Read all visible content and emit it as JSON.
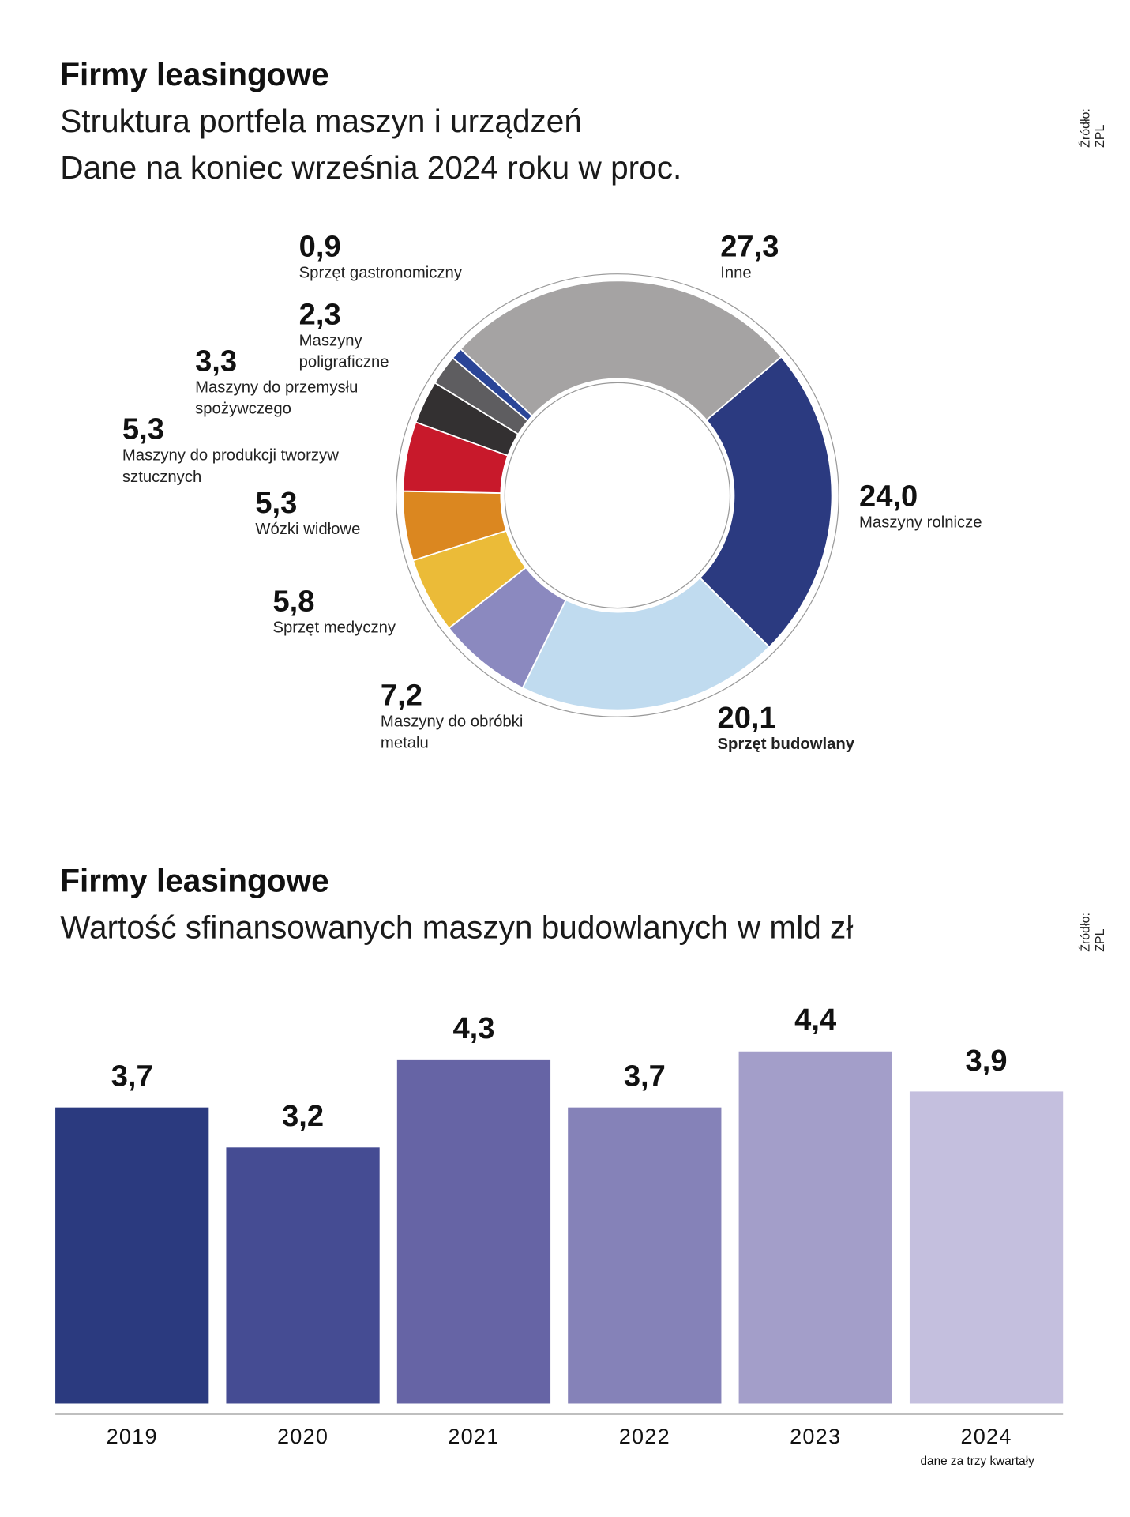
{
  "chart_data": [
    {
      "type": "pie",
      "donut": true,
      "title": "Firmy leasingowe",
      "subtitle": [
        "Struktura portfela maszyn i urządzeń",
        "Dane na koniec września 2024 roku w proc."
      ],
      "source": "Źródło: ZPL",
      "slices": [
        {
          "label": "Inne",
          "value": 27.3,
          "value_text": "27,3",
          "color": "#a5a3a3"
        },
        {
          "label": "Maszyny rolnicze",
          "value": 24.0,
          "value_text": "24,0",
          "color": "#2b3a80"
        },
        {
          "label": "Sprzęt budowlany",
          "value": 20.1,
          "value_text": "20,1",
          "color": "#c0dbef"
        },
        {
          "label": "Maszyny do obróbki metalu",
          "value": 7.2,
          "value_text": "7,2",
          "color": "#8b89bf"
        },
        {
          "label": "Sprzęt medyczny",
          "value": 5.8,
          "value_text": "5,8",
          "color": "#ebbb38"
        },
        {
          "label": "Wózki widłowe",
          "value": 5.3,
          "value_text": "5,3",
          "color": "#db8720"
        },
        {
          "label": "Maszyny do produkcji tworzyw sztucznych",
          "value": 5.3,
          "value_text": "5,3",
          "color": "#c8192b"
        },
        {
          "label": "Maszyny do przemysłu spożywczego",
          "value": 3.3,
          "value_text": "3,3",
          "color": "#333031"
        },
        {
          "label": "Maszyny poligraficzne",
          "value": 2.3,
          "value_text": "2,3",
          "color": "#5e5d60"
        },
        {
          "label": "Sprzęt gastronomiczny",
          "value": 0.9,
          "value_text": "0,9",
          "color": "#2a4597"
        }
      ]
    },
    {
      "type": "bar",
      "title": "Firmy leasingowe",
      "subtitle": "Wartość sfinansowanych maszyn budowlanych w mld zł",
      "source": "Źródło: ZPL",
      "categories": [
        "2019",
        "2020",
        "2021",
        "2022",
        "2023",
        "2024"
      ],
      "values": [
        3.7,
        3.2,
        4.3,
        3.7,
        4.4,
        3.9
      ],
      "value_labels": [
        "3,7",
        "3,2",
        "4,3",
        "3,7",
        "4,4",
        "3,9"
      ],
      "colors": [
        "#2b3a7f",
        "#454c93",
        "#6664a5",
        "#8582b8",
        "#a39ec9",
        "#c4bfde"
      ],
      "note": "dane za trzy kwartały",
      "ylim": [
        0,
        4.4
      ],
      "xlabel": "",
      "ylabel": ""
    }
  ]
}
